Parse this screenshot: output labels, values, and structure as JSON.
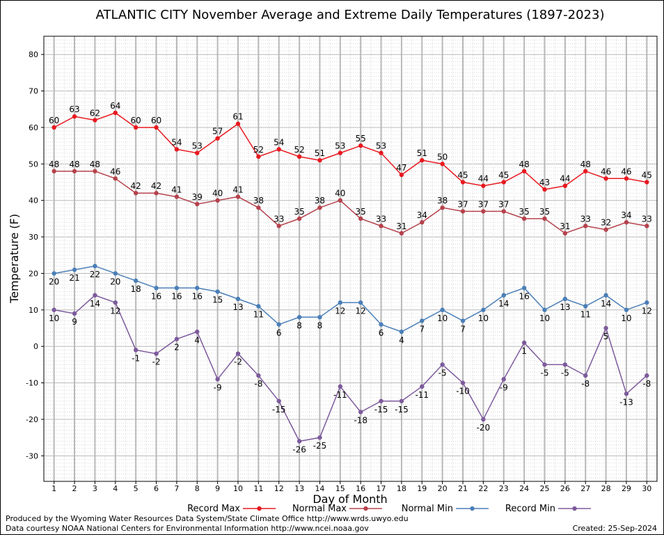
{
  "chart_data": {
    "type": "line",
    "title": "ATLANTIC CITY November Average and Extreme Daily Temperatures (1897-2023)",
    "xlabel": "Day of Month",
    "ylabel": "Temperature (F)",
    "xlim": [
      0.5,
      30.5
    ],
    "ylim": [
      -37,
      85
    ],
    "yticks": [
      -30,
      -20,
      -10,
      0,
      10,
      20,
      30,
      40,
      50,
      60,
      70,
      80
    ],
    "x": [
      1,
      2,
      3,
      4,
      5,
      6,
      7,
      8,
      9,
      10,
      11,
      12,
      13,
      14,
      15,
      16,
      17,
      18,
      19,
      20,
      21,
      22,
      23,
      24,
      25,
      26,
      27,
      28,
      29,
      30
    ],
    "grid": true,
    "legend_position": "bottom",
    "series": [
      {
        "name": "Record Max",
        "color": "#e8191f",
        "values": [
          60,
          63,
          62,
          64,
          60,
          60,
          54,
          53,
          57,
          61,
          52,
          54,
          52,
          51,
          53,
          55,
          53,
          47,
          51,
          50,
          45,
          44,
          45,
          48,
          43,
          44,
          48,
          46,
          46,
          45
        ],
        "label_position": "above"
      },
      {
        "name": "Normal Max",
        "color": "#b5424c",
        "values": [
          48,
          48,
          48,
          46,
          42,
          42,
          41,
          39,
          40,
          41,
          38,
          33,
          35,
          38,
          40,
          35,
          33,
          31,
          34,
          38,
          37,
          37,
          37,
          35,
          35,
          31,
          33,
          32,
          34,
          33
        ],
        "label_position": "above"
      },
      {
        "name": "Normal Min",
        "color": "#4a7fb8",
        "values": [
          20,
          21,
          22,
          20,
          18,
          16,
          16,
          16,
          15,
          13,
          11,
          6,
          8,
          8,
          12,
          12,
          6,
          4,
          7,
          10,
          7,
          10,
          14,
          16,
          10,
          13,
          11,
          14,
          10,
          12
        ],
        "label_position": "below"
      },
      {
        "name": "Record Min",
        "color": "#7d5a9c",
        "values": [
          10,
          9,
          14,
          12,
          -1,
          -2,
          2,
          4,
          -9,
          -2,
          -8,
          -15,
          -26,
          -25,
          -11,
          -18,
          -15,
          -15,
          -11,
          -5,
          -10,
          -20,
          -9,
          1,
          -5,
          -5,
          -8,
          5,
          -13,
          -8
        ],
        "label_position": "below"
      }
    ]
  },
  "footer": {
    "produced_by": "Produced by the Wyoming Water Resources Data System/State Climate Office http://www.wrds.uwyo.edu",
    "data_courtesy": "Data courtesy NOAA National Centers for Environmental Information http://www.ncei.noaa.gov",
    "created": "Created:  25-Sep-2024"
  },
  "colors": {
    "grid_major": "#b8b8b8",
    "grid_minor": "#d6d6d6"
  }
}
